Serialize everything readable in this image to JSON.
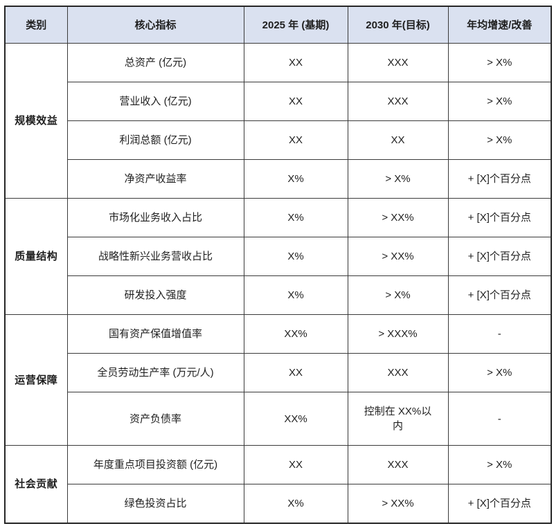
{
  "table": {
    "columns": [
      "类别",
      "核心指标",
      "2025 年 (基期)",
      "2030 年(目标)",
      "年均增速/改善"
    ],
    "groups": [
      {
        "category": "规模效益",
        "rows": [
          {
            "indicator": "总资产 (亿元)",
            "base": "XX",
            "target": "XXX",
            "growth": "> X%"
          },
          {
            "indicator": "营业收入 (亿元)",
            "base": "XX",
            "target": "XXX",
            "growth": "> X%"
          },
          {
            "indicator": "利润总额 (亿元)",
            "base": "XX",
            "target": "XX",
            "growth": "> X%"
          },
          {
            "indicator": "净资产收益率",
            "base": "X%",
            "target": "> X%",
            "growth": "+ [X]个百分点"
          }
        ]
      },
      {
        "category": "质量结构",
        "rows": [
          {
            "indicator": "市场化业务收入占比",
            "base": "X%",
            "target": "> XX%",
            "growth": "+ [X]个百分点"
          },
          {
            "indicator": "战略性新兴业务营收占比",
            "base": "X%",
            "target": "> XX%",
            "growth": "+ [X]个百分点"
          },
          {
            "indicator": "研发投入强度",
            "base": "X%",
            "target": "> X%",
            "growth": "+ [X]个百分点"
          }
        ]
      },
      {
        "category": "运营保障",
        "rows": [
          {
            "indicator": "国有资产保值增值率",
            "base": "XX%",
            "target": "> XXX%",
            "growth": "-"
          },
          {
            "indicator": "全员劳动生产率 (万元/人)",
            "base": "XX",
            "target": "XXX",
            "growth": "> X%"
          },
          {
            "indicator": "资产负债率",
            "base": "XX%",
            "target": "控制在 XX%以内",
            "growth": "-"
          }
        ]
      },
      {
        "category": "社会贡献",
        "rows": [
          {
            "indicator": "年度重点项目投资额 (亿元)",
            "base": "XX",
            "target": "XXX",
            "growth": "> X%"
          },
          {
            "indicator": "绿色投资占比",
            "base": "X%",
            "target": "> XX%",
            "growth": "+ [X]个百分点"
          }
        ]
      }
    ]
  },
  "colors": {
    "header_bg": "#dae1f0",
    "border_inner": "#3a3a3a",
    "border_outer": "#262626",
    "text": "#1f1f1f"
  }
}
